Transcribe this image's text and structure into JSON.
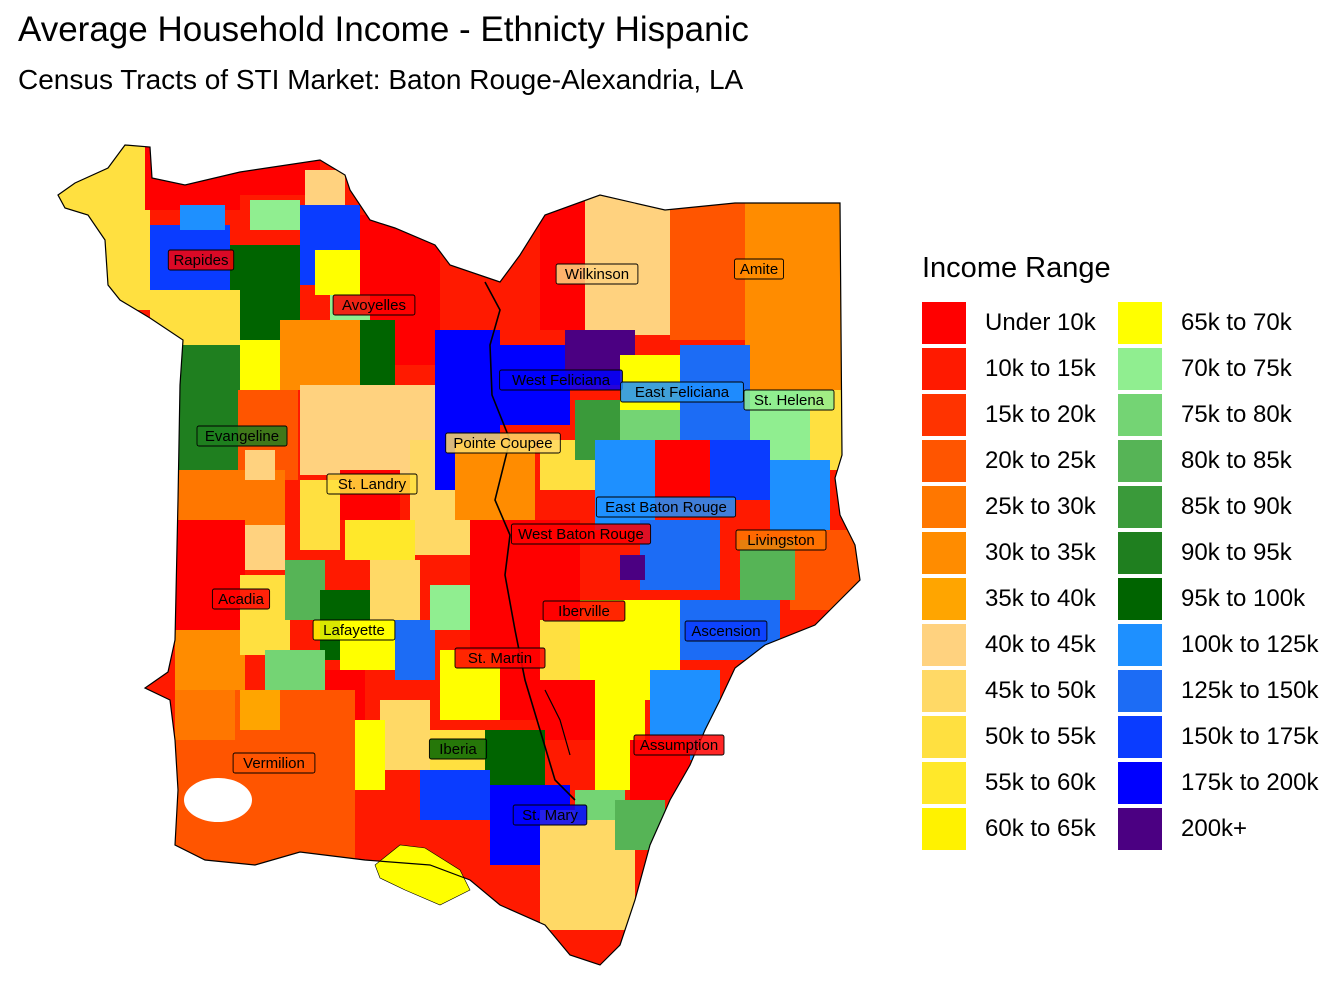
{
  "title": "Average Household Income - Ethnicty Hispanic",
  "subtitle": "Census Tracts of STI Market: Baton Rouge-Alexandria, LA",
  "legend": {
    "title": "Income Range",
    "items": [
      {
        "label": "Under 10k",
        "color": "#ff0000"
      },
      {
        "label": "10k to 15k",
        "color": "#ff1a00"
      },
      {
        "label": "15k to 20k",
        "color": "#ff3300"
      },
      {
        "label": "20k to 25k",
        "color": "#ff5500"
      },
      {
        "label": "25k to 30k",
        "color": "#ff7700"
      },
      {
        "label": "30k to 35k",
        "color": "#ff8c00"
      },
      {
        "label": "35k to 40k",
        "color": "#ffa500"
      },
      {
        "label": "40k to 45k",
        "color": "#ffd27f"
      },
      {
        "label": "45k to 50k",
        "color": "#ffd966"
      },
      {
        "label": "50k to 55k",
        "color": "#ffe040"
      },
      {
        "label": "55k to 60k",
        "color": "#ffe82a"
      },
      {
        "label": "60k to 65k",
        "color": "#fff200"
      },
      {
        "label": "65k to 70k",
        "color": "#ffff00"
      },
      {
        "label": "70k to 75k",
        "color": "#90ee90"
      },
      {
        "label": "75k to 80k",
        "color": "#74d474"
      },
      {
        "label": "80k to 85k",
        "color": "#56b456"
      },
      {
        "label": "85k to 90k",
        "color": "#3a9a3a"
      },
      {
        "label": "90k to 95k",
        "color": "#1f7f1f"
      },
      {
        "label": "95k to 100k",
        "color": "#006400"
      },
      {
        "label": "100k to 125k",
        "color": "#1e90ff"
      },
      {
        "label": "125k to 150k",
        "color": "#1c6cf5"
      },
      {
        "label": "150k to 175k",
        "color": "#0a3cff"
      },
      {
        "label": "175k to 200k",
        "color": "#0000ff"
      },
      {
        "label": "200k+",
        "color": "#4b0082"
      }
    ]
  },
  "parishes": [
    {
      "name": "Rapides",
      "tone": 0
    },
    {
      "name": "Avoyelles",
      "tone": 0
    },
    {
      "name": "Wilkinson",
      "tone": 7
    },
    {
      "name": "Amite",
      "tone": 5
    },
    {
      "name": "West Feliciana",
      "tone": 22
    },
    {
      "name": "East Feliciana",
      "tone": 19
    },
    {
      "name": "St. Helena",
      "tone": 13
    },
    {
      "name": "Evangeline",
      "tone": 17
    },
    {
      "name": "Pointe Coupee",
      "tone": 8
    },
    {
      "name": "St. Landry",
      "tone": 9
    },
    {
      "name": "East Baton Rouge",
      "tone": 19
    },
    {
      "name": "West Baton Rouge",
      "tone": 0
    },
    {
      "name": "Livingston",
      "tone": 4
    },
    {
      "name": "Acadia",
      "tone": 0
    },
    {
      "name": "Lafayette",
      "tone": 12
    },
    {
      "name": "Iberville",
      "tone": 0
    },
    {
      "name": "Ascension",
      "tone": 21
    },
    {
      "name": "St. Martin",
      "tone": 0
    },
    {
      "name": "Iberia",
      "tone": 18
    },
    {
      "name": "Assumption",
      "tone": 0
    },
    {
      "name": "Vermilion",
      "tone": 3
    },
    {
      "name": "St. Mary",
      "tone": 22
    }
  ]
}
